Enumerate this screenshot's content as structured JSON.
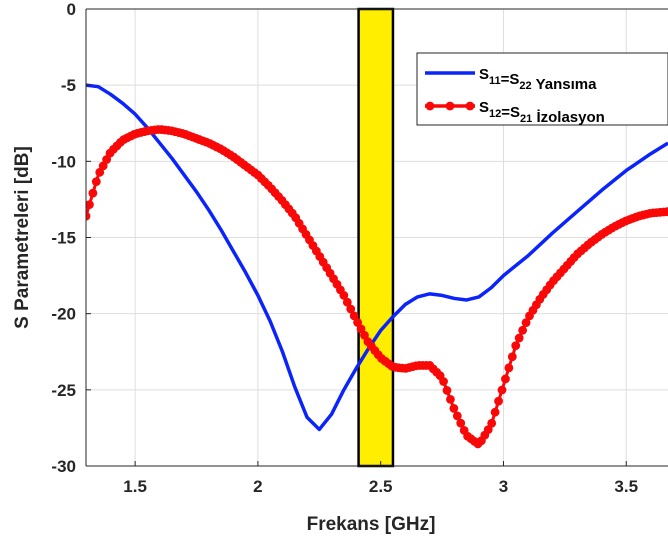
{
  "chart_data": {
    "type": "line",
    "title": "",
    "xlabel": "Frekans [GHz]",
    "ylabel": "S Parametreleri [dB]",
    "xlim": [
      1.3,
      3.67
    ],
    "ylim": [
      -30,
      0
    ],
    "xticks": [
      1.5,
      2,
      2.5,
      3,
      3.5
    ],
    "xtick_labels": [
      "1.5",
      "2",
      "2.5",
      "3",
      "3.5"
    ],
    "yticks": [
      0,
      -5,
      -10,
      -15,
      -20,
      -25,
      -30
    ],
    "ytick_labels": [
      "0",
      "-5",
      "-10",
      "-15",
      "-20",
      "-25",
      "-30"
    ],
    "grid": true,
    "legend_position": "top-right",
    "highlight_band": {
      "x_start": 2.41,
      "x_end": 2.55,
      "color": "#ffee00",
      "edge_color": "#000000"
    },
    "series": [
      {
        "key": "s11",
        "label_parts": [
          {
            "text": "S",
            "sub": false
          },
          {
            "text": "11",
            "sub": true
          },
          {
            "text": "=S",
            "sub": false
          },
          {
            "text": "22",
            "sub": true
          },
          {
            "text": "  Yansıma",
            "sub": false
          }
        ],
        "color": "#0b24fb",
        "marker": "none",
        "x": [
          1.3,
          1.35,
          1.4,
          1.45,
          1.5,
          1.55,
          1.6,
          1.65,
          1.7,
          1.75,
          1.8,
          1.85,
          1.9,
          1.95,
          2.0,
          2.05,
          2.1,
          2.15,
          2.2,
          2.25,
          2.3,
          2.35,
          2.4,
          2.45,
          2.5,
          2.55,
          2.6,
          2.65,
          2.7,
          2.75,
          2.8,
          2.85,
          2.9,
          2.95,
          3.0,
          3.1,
          3.2,
          3.3,
          3.4,
          3.5,
          3.6,
          3.67
        ],
        "y": [
          -5.0,
          -5.1,
          -5.6,
          -6.2,
          -6.9,
          -7.8,
          -8.8,
          -9.8,
          -10.9,
          -12.0,
          -13.2,
          -14.5,
          -15.9,
          -17.3,
          -18.8,
          -20.5,
          -22.5,
          -24.8,
          -26.8,
          -27.6,
          -26.6,
          -25.0,
          -23.6,
          -22.3,
          -21.1,
          -20.2,
          -19.4,
          -18.9,
          -18.7,
          -18.8,
          -19.0,
          -19.1,
          -18.9,
          -18.3,
          -17.5,
          -16.2,
          -14.7,
          -13.3,
          -11.9,
          -10.6,
          -9.5,
          -8.8
        ]
      },
      {
        "key": "s12",
        "label_parts": [
          {
            "text": "S",
            "sub": false
          },
          {
            "text": "12",
            "sub": true
          },
          {
            "text": "=S",
            "sub": false
          },
          {
            "text": "21",
            "sub": true
          },
          {
            "text": " İzolasyon",
            "sub": false
          }
        ],
        "color": "#f90808",
        "marker": "circle",
        "x": [
          1.3,
          1.35,
          1.4,
          1.45,
          1.5,
          1.55,
          1.6,
          1.65,
          1.7,
          1.75,
          1.8,
          1.85,
          1.9,
          1.95,
          2.0,
          2.05,
          2.1,
          2.15,
          2.2,
          2.25,
          2.3,
          2.35,
          2.4,
          2.45,
          2.5,
          2.55,
          2.6,
          2.65,
          2.7,
          2.75,
          2.8,
          2.85,
          2.9,
          2.95,
          3.0,
          3.05,
          3.1,
          3.15,
          3.2,
          3.25,
          3.3,
          3.35,
          3.4,
          3.45,
          3.5,
          3.55,
          3.6,
          3.67
        ],
        "y": [
          -13.6,
          -10.9,
          -9.4,
          -8.6,
          -8.2,
          -8.0,
          -7.9,
          -8.0,
          -8.2,
          -8.5,
          -8.8,
          -9.2,
          -9.7,
          -10.3,
          -10.9,
          -11.7,
          -12.6,
          -13.6,
          -14.9,
          -16.2,
          -17.5,
          -18.8,
          -20.4,
          -21.9,
          -22.9,
          -23.5,
          -23.6,
          -23.4,
          -23.4,
          -24.2,
          -26.3,
          -28.0,
          -28.6,
          -27.3,
          -24.7,
          -22.1,
          -20.3,
          -19.0,
          -17.9,
          -17.0,
          -16.1,
          -15.4,
          -14.8,
          -14.3,
          -13.9,
          -13.6,
          -13.4,
          -13.3
        ]
      }
    ]
  }
}
